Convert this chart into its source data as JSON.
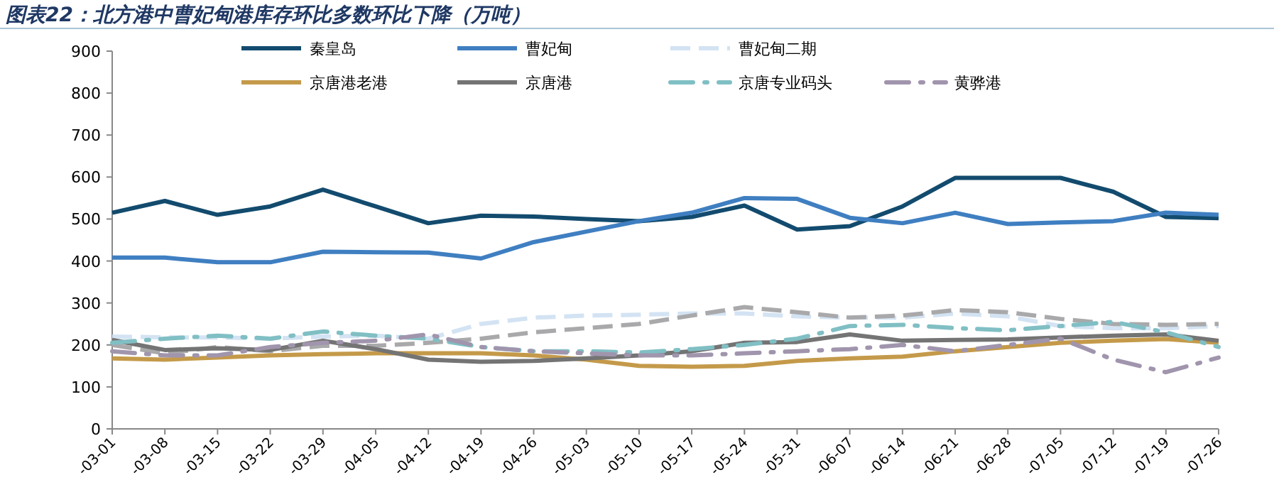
{
  "chart_data": {
    "type": "line",
    "title": "图表22：北方港中曹妃甸港库存环比多数环比下降（万吨）",
    "categories": [
      "-03-01",
      "-03-08",
      "-03-15",
      "-03-22",
      "-03-29",
      "-04-05",
      "-04-12",
      "-04-19",
      "-04-26",
      "-05-03",
      "-05-10",
      "-05-17",
      "-05-24",
      "-05-31",
      "-06-07",
      "-06-14",
      "-06-21",
      "-06-28",
      "-07-05",
      "-07-12",
      "-07-19",
      "-07-26"
    ],
    "ylim": [
      0,
      900
    ],
    "yticks": [
      0,
      100,
      200,
      300,
      400,
      500,
      600,
      700,
      800,
      900
    ],
    "grid": false,
    "legend": "top",
    "marker": "none",
    "series": [
      {
        "name": "秦皇岛",
        "color": "#124b6e",
        "line_style": "solid",
        "values": [
          515,
          543,
          510,
          530,
          570,
          530,
          490,
          508,
          506,
          500,
          495,
          505,
          532,
          475,
          483,
          530,
          598,
          598,
          598,
          565,
          505,
          502
        ]
      },
      {
        "name": "曹妃甸",
        "color": "#3f7fc1",
        "line_style": "solid",
        "values": [
          408,
          408,
          397,
          397,
          422,
          421,
          420,
          406,
          445,
          470,
          495,
          515,
          550,
          548,
          503,
          490,
          515,
          488,
          492,
          495,
          515,
          510
        ]
      },
      {
        "name": "曹妃甸二期",
        "color": "#d3e3f3",
        "line_style": "dashed",
        "values": [
          220,
          218,
          218,
          215,
          220,
          222,
          215,
          250,
          265,
          270,
          272,
          275,
          275,
          268,
          265,
          265,
          275,
          268,
          245,
          240,
          240,
          245
        ]
      },
      {
        "color": "#a9a9ab",
        "line_style": "dashed",
        "values": [
          200,
          180,
          195,
          185,
          198,
          198,
          205,
          215,
          230,
          240,
          250,
          270,
          290,
          278,
          265,
          270,
          283,
          278,
          262,
          250,
          248,
          250
        ]
      },
      {
        "name": "京唐港老港",
        "color": "#c49a4a",
        "line_style": "solid",
        "values": [
          168,
          165,
          170,
          175,
          178,
          180,
          180,
          180,
          175,
          165,
          150,
          148,
          150,
          162,
          168,
          172,
          185,
          195,
          205,
          210,
          214,
          205
        ]
      },
      {
        "name": "京唐港",
        "color": "#747474",
        "line_style": "solid",
        "values": [
          212,
          188,
          192,
          188,
          210,
          190,
          165,
          160,
          162,
          168,
          175,
          185,
          205,
          207,
          225,
          210,
          212,
          213,
          218,
          222,
          225,
          210
        ]
      },
      {
        "name": "京唐专业码头",
        "color": "#80bfc4",
        "line_style": "dashdot",
        "values": [
          205,
          215,
          222,
          215,
          232,
          222,
          215,
          195,
          185,
          185,
          182,
          190,
          200,
          215,
          245,
          248,
          240,
          235,
          245,
          255,
          230,
          195
        ]
      },
      {
        "name": "黄骅港",
        "color": "#a095ad",
        "line_style": "dashdot",
        "values": [
          185,
          175,
          175,
          195,
          205,
          210,
          225,
          195,
          185,
          180,
          175,
          175,
          180,
          185,
          190,
          200,
          185,
          200,
          215,
          165,
          135,
          170
        ]
      }
    ]
  }
}
